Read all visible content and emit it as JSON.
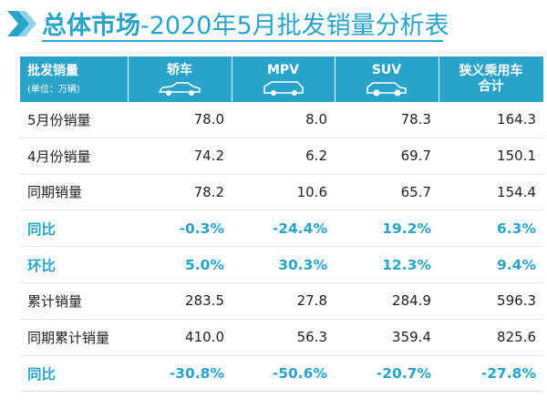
{
  "title": {
    "main": "总体市场",
    "rest": "-2020年5月批发销量分析表"
  },
  "table": {
    "header": [
      {
        "label": "批发销量",
        "unit": "(单位：万辆)"
      },
      {
        "label": "轿车"
      },
      {
        "label": "MPV"
      },
      {
        "label": "SUV"
      },
      {
        "label": "狭义乘用车\n合计"
      }
    ],
    "rows": [
      [
        "5月份销量",
        "78.0",
        "8.0",
        "78.3",
        "164.3"
      ],
      [
        "4月份销量",
        "74.2",
        "6.2",
        "69.7",
        "150.1"
      ],
      [
        "同期销量",
        "78.2",
        "10.6",
        "65.7",
        "154.4"
      ],
      [
        "同比",
        "-0.3%",
        "-24.4%",
        "19.2%",
        "6.3%"
      ],
      [
        "环比",
        "5.0%",
        "30.3%",
        "12.3%",
        "9.4%"
      ],
      [
        "累计销量",
        "283.5",
        "27.8",
        "284.9",
        "596.3"
      ],
      [
        "同期累计销量",
        "410.0",
        "56.3",
        "359.4",
        "825.6"
      ],
      [
        "同比",
        "-30.8%",
        "-50.6%",
        "-20.7%",
        "-27.8%"
      ]
    ]
  }
}
